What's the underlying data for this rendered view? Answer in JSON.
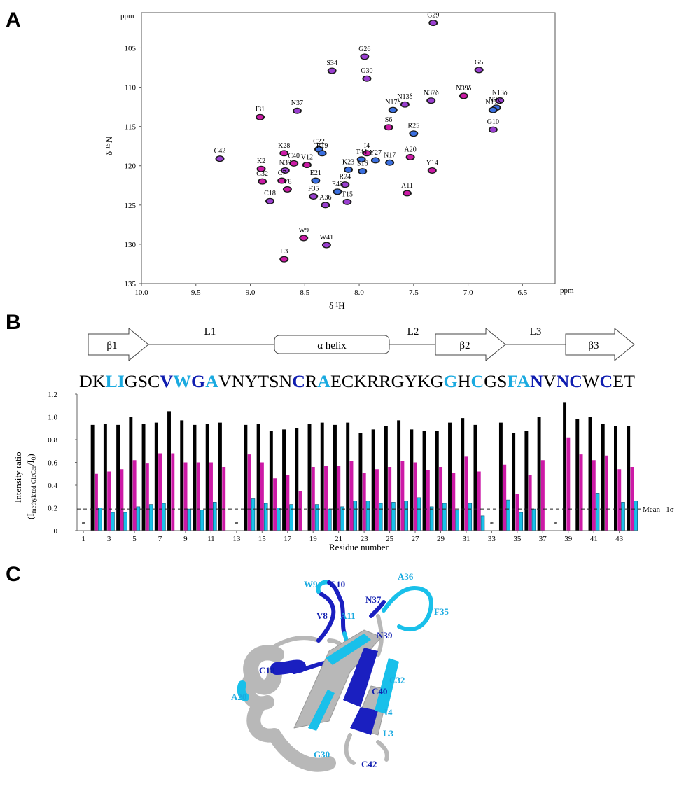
{
  "panels": {
    "a": "A",
    "b": "B",
    "c": "C"
  },
  "colors": {
    "black": "#000000",
    "magenta": "#cc1aa6",
    "cyan": "#19c0ea",
    "cyan_text": "#1aaae0",
    "dark_blue": "#0f1db0",
    "grey": "#b8b8b8"
  },
  "spectrum": {
    "x_label": "δ ¹H",
    "y_label": "δ ¹⁵N",
    "unit_top": "ppm",
    "unit_right": "ppm",
    "x_ticks": [
      "10.0",
      "9.5",
      "9.0",
      "8.5",
      "8.0",
      "7.5",
      "7.0",
      "6.5"
    ],
    "y_ticks": [
      "105",
      "110",
      "115",
      "120",
      "125",
      "130",
      "135"
    ],
    "xlim": [
      10.0,
      6.2
    ],
    "ylim": [
      100.5,
      135
    ],
    "peaks": [
      {
        "label": "G29",
        "h": 7.32,
        "n": 101.8,
        "c": "#9a3fd0"
      },
      {
        "label": "G26",
        "h": 7.95,
        "n": 106.1,
        "c": "#9a3fd0"
      },
      {
        "label": "S34",
        "h": 8.25,
        "n": 107.9,
        "c": "#9a3fd0"
      },
      {
        "label": "G5",
        "h": 6.9,
        "n": 107.8,
        "c": "#9a3fd0"
      },
      {
        "label": "G30",
        "h": 7.93,
        "n": 108.9,
        "c": "#9a3fd0"
      },
      {
        "label": "N39δ",
        "h": 7.04,
        "n": 111.1,
        "c": "#cc1aa6"
      },
      {
        "label": "N13δ",
        "h": 7.58,
        "n": 112.2,
        "c": "#9a3fd0"
      },
      {
        "label": "N37δ",
        "h": 7.34,
        "n": 111.7,
        "c": "#9a3fd0"
      },
      {
        "label": "N17δ",
        "h": 7.69,
        "n": 112.9,
        "c": "#3a6fe0"
      },
      {
        "label": "N37δ",
        "h": 6.74,
        "n": 112.6,
        "c": "#3a6fe0"
      },
      {
        "label": "N13δ",
        "h": 6.71,
        "n": 111.7,
        "c": "#9a3fd0"
      },
      {
        "label": "N17δ",
        "h": 6.77,
        "n": 112.9,
        "c": "#3a6fe0"
      },
      {
        "label": "N37",
        "h": 8.57,
        "n": 113.0,
        "c": "#9a3fd0"
      },
      {
        "label": "I31",
        "h": 8.91,
        "n": 113.8,
        "c": "#cc1aa6"
      },
      {
        "label": "S6",
        "h": 7.73,
        "n": 115.1,
        "c": "#cc1aa6"
      },
      {
        "label": "G10",
        "h": 6.77,
        "n": 115.4,
        "c": "#9a3fd0"
      },
      {
        "label": "R25",
        "h": 7.5,
        "n": 115.9,
        "c": "#3a6fe0"
      },
      {
        "label": "C22",
        "h": 8.37,
        "n": 117.9,
        "c": "#3a6fe0"
      },
      {
        "label": "R19",
        "h": 8.34,
        "n": 118.4,
        "c": "#3a6fe0"
      },
      {
        "label": "K28",
        "h": 8.69,
        "n": 118.4,
        "c": "#cc1aa6"
      },
      {
        "label": "I4",
        "h": 7.93,
        "n": 118.4,
        "c": "#cc1aa6"
      },
      {
        "label": "T44",
        "h": 7.98,
        "n": 119.2,
        "c": "#3a6fe0"
      },
      {
        "label": "Y27",
        "h": 7.85,
        "n": 119.3,
        "c": "#3a6fe0"
      },
      {
        "label": "N17",
        "h": 7.72,
        "n": 119.6,
        "c": "#3a6fe0"
      },
      {
        "label": "A20",
        "h": 7.53,
        "n": 118.9,
        "c": "#cc1aa6"
      },
      {
        "label": "C42",
        "h": 9.28,
        "n": 119.1,
        "c": "#9a3fd0"
      },
      {
        "label": "C40",
        "h": 8.6,
        "n": 119.7,
        "c": "#cc1aa6"
      },
      {
        "label": "V12",
        "h": 8.48,
        "n": 119.9,
        "c": "#cc1aa6"
      },
      {
        "label": "K2",
        "h": 8.9,
        "n": 120.4,
        "c": "#cc1aa6"
      },
      {
        "label": "N39",
        "h": 8.68,
        "n": 120.6,
        "c": "#9a3fd0"
      },
      {
        "label": "K23",
        "h": 8.1,
        "n": 120.5,
        "c": "#3a6fe0"
      },
      {
        "label": "S16",
        "h": 7.97,
        "n": 120.7,
        "c": "#3a6fe0"
      },
      {
        "label": "Y14",
        "h": 7.33,
        "n": 120.6,
        "c": "#cc1aa6"
      },
      {
        "label": "C32",
        "h": 8.89,
        "n": 122.0,
        "c": "#cc1aa6"
      },
      {
        "label": "C7",
        "h": 8.71,
        "n": 121.9,
        "c": "#cc1aa6"
      },
      {
        "label": "E21",
        "h": 8.4,
        "n": 121.9,
        "c": "#3a6fe0"
      },
      {
        "label": "R24",
        "h": 8.13,
        "n": 122.4,
        "c": "#9a3fd0"
      },
      {
        "label": "V8",
        "h": 8.66,
        "n": 123.0,
        "c": "#cc1aa6"
      },
      {
        "label": "E43",
        "h": 8.2,
        "n": 123.3,
        "c": "#3a6fe0"
      },
      {
        "label": "A11",
        "h": 7.56,
        "n": 123.5,
        "c": "#cc1aa6"
      },
      {
        "label": "F35",
        "h": 8.42,
        "n": 123.9,
        "c": "#9a3fd0"
      },
      {
        "label": "C18",
        "h": 8.82,
        "n": 124.5,
        "c": "#9a3fd0"
      },
      {
        "label": "T15",
        "h": 8.11,
        "n": 124.6,
        "c": "#9a3fd0"
      },
      {
        "label": "A36",
        "h": 8.31,
        "n": 125.0,
        "c": "#9a3fd0"
      },
      {
        "label": "W9",
        "h": 8.51,
        "n": 129.2,
        "c": "#cc1aa6"
      },
      {
        "label": "W41",
        "h": 8.3,
        "n": 130.1,
        "c": "#9a3fd0"
      },
      {
        "label": "L3",
        "h": 8.69,
        "n": 131.9,
        "c": "#cc1aa6"
      }
    ]
  },
  "topology": {
    "segments": [
      "β1",
      "L1",
      "α helix",
      "L2",
      "β2",
      "L3",
      "β3"
    ]
  },
  "sequence": [
    {
      "r": "D",
      "c": "#000000"
    },
    {
      "r": "K",
      "c": "#000000"
    },
    {
      "r": "L",
      "c": "#1aaae0"
    },
    {
      "r": "I",
      "c": "#1aaae0"
    },
    {
      "r": "G",
      "c": "#000000"
    },
    {
      "r": "S",
      "c": "#000000"
    },
    {
      "r": "C",
      "c": "#000000"
    },
    {
      "r": "V",
      "c": "#0f1db0"
    },
    {
      "r": "W",
      "c": "#1aaae0"
    },
    {
      "r": "G",
      "c": "#0f1db0"
    },
    {
      "r": "A",
      "c": "#1aaae0"
    },
    {
      "r": "V",
      "c": "#000000"
    },
    {
      "r": "N",
      "c": "#000000"
    },
    {
      "r": "Y",
      "c": "#000000"
    },
    {
      "r": "T",
      "c": "#000000"
    },
    {
      "r": "S",
      "c": "#000000"
    },
    {
      "r": "N",
      "c": "#000000"
    },
    {
      "r": "C",
      "c": "#0f1db0"
    },
    {
      "r": "R",
      "c": "#000000"
    },
    {
      "r": "A",
      "c": "#1aaae0"
    },
    {
      "r": "E",
      "c": "#000000"
    },
    {
      "r": "C",
      "c": "#000000"
    },
    {
      "r": "K",
      "c": "#000000"
    },
    {
      "r": "R",
      "c": "#000000"
    },
    {
      "r": "R",
      "c": "#000000"
    },
    {
      "r": "G",
      "c": "#000000"
    },
    {
      "r": "Y",
      "c": "#000000"
    },
    {
      "r": "K",
      "c": "#000000"
    },
    {
      "r": "G",
      "c": "#000000"
    },
    {
      "r": "G",
      "c": "#1aaae0"
    },
    {
      "r": "H",
      "c": "#000000"
    },
    {
      "r": "C",
      "c": "#1aaae0"
    },
    {
      "r": "G",
      "c": "#000000"
    },
    {
      "r": "S",
      "c": "#000000"
    },
    {
      "r": "F",
      "c": "#1aaae0"
    },
    {
      "r": "A",
      "c": "#1aaae0"
    },
    {
      "r": "N",
      "c": "#0f1db0"
    },
    {
      "r": "V",
      "c": "#000000"
    },
    {
      "r": "N",
      "c": "#0f1db0"
    },
    {
      "r": "C",
      "c": "#0f1db0"
    },
    {
      "r": "W",
      "c": "#000000"
    },
    {
      "r": "C",
      "c": "#0f1db0"
    },
    {
      "r": "E",
      "c": "#000000"
    },
    {
      "r": "T",
      "c": "#000000"
    }
  ],
  "chart_data": {
    "type": "bar",
    "xlabel": "Residue number",
    "ylabel_line1": "Intensity ratio",
    "ylabel_line2_main": "(I",
    "ylabel_line2_sub": "methylated GlcCer",
    "ylabel_line2_mid": "/I",
    "ylabel_line2_sub2": "0",
    "ylabel_line2_end": ")",
    "ylim": [
      0,
      1.2
    ],
    "y_ticks": [
      "0",
      "0.2",
      "0.4",
      "0.6",
      "0.8",
      "1.0",
      "1.2"
    ],
    "x_ticks": [
      "1",
      "3",
      "5",
      "7",
      "9",
      "11",
      "13",
      "15",
      "17",
      "19",
      "21",
      "23",
      "25",
      "27",
      "29",
      "31",
      "33",
      "35",
      "37",
      "39",
      "41",
      "43"
    ],
    "mean_line_value": 0.19,
    "mean_line_label": "Mean –1σ",
    "missing_marker": "*",
    "missing_residues": [
      1,
      13,
      33,
      38
    ],
    "residues": [
      2,
      3,
      4,
      5,
      6,
      7,
      8,
      9,
      10,
      11,
      12,
      14,
      15,
      16,
      17,
      18,
      19,
      20,
      21,
      22,
      23,
      24,
      25,
      26,
      27,
      28,
      29,
      30,
      31,
      32,
      34,
      35,
      36,
      37,
      39,
      40,
      41,
      42,
      43,
      44
    ],
    "series": [
      {
        "color": "#000000",
        "values": [
          0.93,
          0.94,
          0.93,
          1.0,
          0.94,
          0.95,
          1.05,
          0.97,
          0.93,
          0.94,
          0.95,
          0.93,
          0.94,
          0.88,
          0.89,
          0.9,
          0.94,
          0.95,
          0.93,
          0.95,
          0.86,
          0.89,
          0.92,
          0.97,
          0.89,
          0.88,
          0.88,
          0.95,
          0.99,
          0.93,
          0.95,
          0.86,
          0.88,
          1.0,
          1.13,
          0.98,
          1.0,
          0.94,
          0.92,
          0.92
        ]
      },
      {
        "color": "#cc1aa6",
        "values": [
          0.5,
          0.52,
          0.54,
          0.62,
          0.59,
          0.68,
          0.68,
          0.6,
          0.6,
          0.6,
          0.56,
          0.67,
          0.6,
          0.46,
          0.49,
          0.35,
          0.56,
          0.57,
          0.57,
          0.61,
          0.51,
          0.54,
          0.56,
          0.61,
          0.6,
          0.53,
          0.56,
          0.51,
          0.65,
          0.52,
          0.58,
          0.32,
          0.49,
          0.62,
          0.82,
          0.67,
          0.62,
          0.66,
          0.54,
          0.56
        ]
      },
      {
        "color": "#19c0ea",
        "values": [
          0.2,
          0.16,
          0.16,
          0.21,
          0.23,
          0.24,
          null,
          0.19,
          0.18,
          0.25,
          null,
          0.28,
          0.24,
          0.2,
          0.23,
          null,
          0.23,
          0.19,
          0.21,
          0.26,
          0.26,
          0.24,
          0.25,
          0.26,
          0.29,
          0.21,
          0.24,
          0.18,
          0.24,
          0.13,
          0.27,
          0.16,
          0.19,
          null,
          null,
          null,
          0.33,
          null,
          0.25,
          0.26
        ]
      }
    ]
  },
  "structure": {
    "labels_cyan": [
      "W9",
      "A11",
      "A36",
      "F35",
      "C32",
      "A20",
      "I4",
      "L3",
      "G30"
    ],
    "labels_blue": [
      "G10",
      "V8",
      "N37",
      "N39",
      "C18",
      "C40",
      "C42"
    ]
  }
}
